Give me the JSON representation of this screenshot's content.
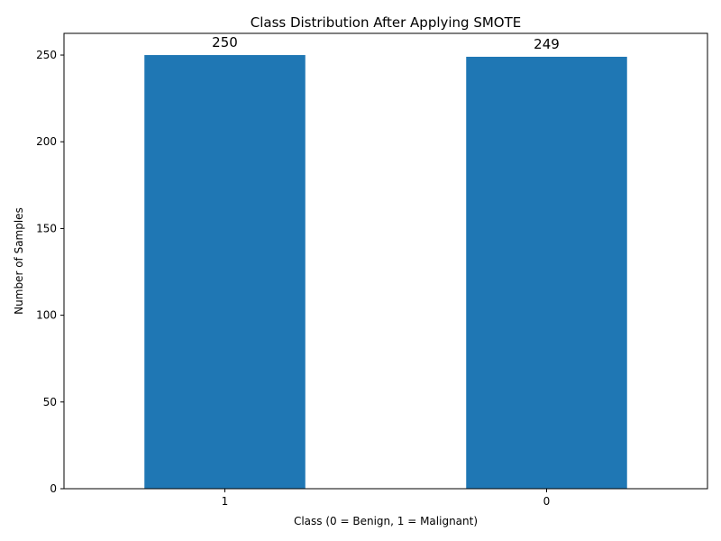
{
  "chart_data": {
    "type": "bar",
    "title": "Class Distribution After Applying SMOTE",
    "xlabel": "Class (0 = Benign, 1 = Malignant)",
    "ylabel": "Number of Samples",
    "categories": [
      "1",
      "0"
    ],
    "values": [
      250,
      249
    ],
    "data_labels": [
      "250",
      "249"
    ],
    "ylim": [
      0,
      262.5
    ],
    "yticks": [
      0,
      50,
      100,
      150,
      200,
      250
    ],
    "grid": false,
    "bar_color": "#1f77b4"
  }
}
